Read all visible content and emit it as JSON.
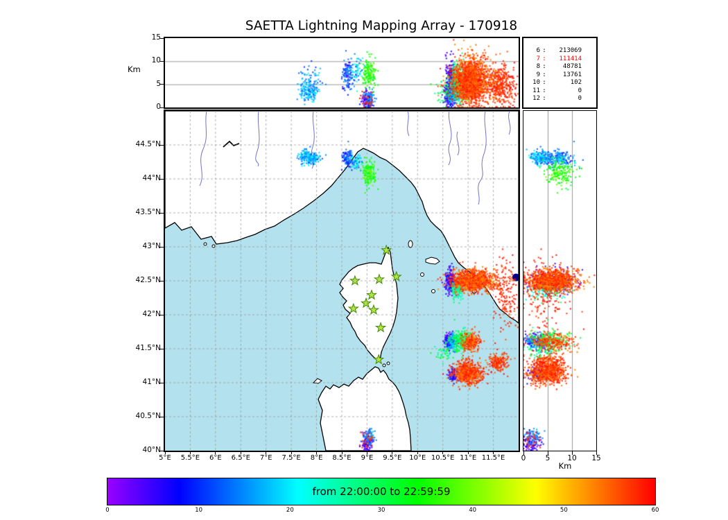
{
  "chart_data": {
    "type": "scatter",
    "title": "SAETTA Lightning Mapping Array - 170918",
    "panels": [
      {
        "id": "top",
        "x_axis": "longitude",
        "y_axis": "altitude_km",
        "xlim_deg": [
          5,
          12
        ],
        "ylim_km": [
          0,
          15
        ],
        "grid_lines_km": [
          5,
          10
        ]
      },
      {
        "id": "map",
        "x_axis": "longitude",
        "y_axis": "latitude",
        "xlim_deg": [
          5,
          12
        ],
        "ylim_deg": [
          40,
          45
        ],
        "grid": "dashed 0.5 deg"
      },
      {
        "id": "right",
        "x_axis": "altitude_km",
        "y_axis": "latitude",
        "xlim_km": [
          0,
          15
        ],
        "ylim_deg": [
          40,
          45
        ],
        "grid_lines_km": [
          5,
          10
        ]
      }
    ],
    "axes": {
      "altitude_km": {
        "label": "Km",
        "ticks": [
          0,
          5,
          10,
          15
        ],
        "range": [
          0,
          15
        ]
      },
      "longitude": {
        "ticks": [
          "5°E",
          "5.5°E",
          "6°E",
          "6.5°E",
          "7°E",
          "7.5°E",
          "8°E",
          "8.5°E",
          "9°E",
          "9.5°E",
          "10°E",
          "10.5°E",
          "11°E",
          "11.5°E"
        ],
        "range_deg": [
          5,
          12
        ]
      },
      "latitude": {
        "ticks": [
          "40°N",
          "40.5°N",
          "41°N",
          "41.5°N",
          "42°N",
          "42.5°N",
          "43°N",
          "43.5°N",
          "44°N",
          "44.5°N"
        ],
        "range_deg": [
          40,
          45
        ]
      }
    },
    "colorbar": {
      "label": "from 22:00:00 to 22:59:59",
      "ticks": [
        0,
        10,
        20,
        30,
        40,
        50,
        60
      ],
      "range": [
        0,
        60
      ]
    },
    "station_counts": [
      {
        "level": "6",
        "count": "213069",
        "highlighted": false
      },
      {
        "level": "7",
        "count": "111414",
        "highlighted": true
      },
      {
        "level": "8",
        "count": "48781",
        "highlighted": false
      },
      {
        "level": "9",
        "count": "13761",
        "highlighted": false
      },
      {
        "level": "10",
        "count": "102",
        "highlighted": false
      },
      {
        "level": "11",
        "count": "0",
        "highlighted": false
      },
      {
        "level": "12",
        "count": "0",
        "highlighted": false
      }
    ],
    "stations_lonlat": [
      [
        9.38,
        42.95
      ],
      [
        8.76,
        42.5
      ],
      [
        9.24,
        42.52
      ],
      [
        9.58,
        42.56
      ],
      [
        9.09,
        42.29
      ],
      [
        8.73,
        42.09
      ],
      [
        9.13,
        42.07
      ],
      [
        8.98,
        42.17
      ],
      [
        9.27,
        41.81
      ],
      [
        9.23,
        41.34
      ]
    ],
    "clusters": [
      {
        "name": "france-blue-low",
        "lon": 7.85,
        "lon_s": 0.1,
        "lat": 44.3,
        "lat_s": 0.05,
        "alt": 3.5,
        "alt_s": 1.2,
        "n": 160,
        "t": [
          12,
          22
        ]
      },
      {
        "name": "france-blue-high",
        "lon": 7.85,
        "lon_s": 0.12,
        "lat": 44.32,
        "lat_s": 0.05,
        "alt": 7.0,
        "alt_s": 1.5,
        "n": 40,
        "t": [
          10,
          20
        ]
      },
      {
        "name": "liguria-violet",
        "lon": 8.62,
        "lon_s": 0.06,
        "lat": 44.3,
        "lat_s": 0.06,
        "alt": 7.0,
        "alt_s": 1.6,
        "n": 110,
        "t": [
          4,
          18
        ]
      },
      {
        "name": "liguria-mix",
        "lon": 8.8,
        "lon_s": 0.06,
        "lat": 44.25,
        "lat_s": 0.06,
        "alt": 8.0,
        "alt_s": 1.4,
        "n": 60,
        "t": [
          10,
          26
        ]
      },
      {
        "name": "liguria-green",
        "lon": 9.05,
        "lon_s": 0.06,
        "lat": 44.08,
        "lat_s": 0.09,
        "alt": 7.5,
        "alt_s": 1.4,
        "n": 170,
        "t": [
          30,
          40
        ]
      },
      {
        "name": "tuscany-violet-edge",
        "lon": 10.65,
        "lon_s": 0.05,
        "lat": 42.5,
        "lat_s": 0.08,
        "alt": 6.0,
        "alt_s": 2.6,
        "n": 220,
        "t": [
          0,
          10
        ]
      },
      {
        "name": "tuscany-cyan",
        "lon": 10.78,
        "lon_s": 0.06,
        "lat": 42.38,
        "lat_s": 0.07,
        "alt": 5.0,
        "alt_s": 2.2,
        "n": 160,
        "t": [
          20,
          30
        ]
      },
      {
        "name": "tuscany-red-main",
        "lon": 11.1,
        "lon_s": 0.22,
        "lat": 42.5,
        "lat_s": 0.08,
        "alt": 6.0,
        "alt_s": 2.6,
        "n": 1100,
        "t": [
          52,
          60
        ]
      },
      {
        "name": "tuscany-red-coast",
        "lon": 11.75,
        "lon_s": 0.12,
        "lat": 42.3,
        "lat_s": 0.25,
        "alt": 4.5,
        "alt_s": 2.3,
        "n": 160,
        "t": [
          56,
          60
        ]
      },
      {
        "name": "sea-mix-violet",
        "lon": 10.62,
        "lon_s": 0.05,
        "lat": 41.62,
        "lat_s": 0.06,
        "alt": 2.5,
        "alt_s": 1.2,
        "n": 110,
        "t": [
          0,
          10
        ]
      },
      {
        "name": "sea-mix-blue",
        "lon": 10.7,
        "lon_s": 0.05,
        "lat": 41.6,
        "lat_s": 0.07,
        "alt": 4.0,
        "alt_s": 1.5,
        "n": 110,
        "t": [
          12,
          20
        ]
      },
      {
        "name": "sea-mix-cyangreen",
        "lon": 10.85,
        "lon_s": 0.08,
        "lat": 41.62,
        "lat_s": 0.08,
        "alt": 5.0,
        "alt_s": 2.0,
        "n": 210,
        "t": [
          22,
          38
        ]
      },
      {
        "name": "sea-mix-red",
        "lon": 11.05,
        "lon_s": 0.09,
        "lat": 41.6,
        "lat_s": 0.07,
        "alt": 6.0,
        "alt_s": 2.4,
        "n": 260,
        "t": [
          52,
          60
        ]
      },
      {
        "name": "sea-sparse-cyan",
        "lon": 10.52,
        "lon_s": 0.1,
        "lat": 41.45,
        "lat_s": 0.08,
        "alt": 4.0,
        "alt_s": 2.0,
        "n": 45,
        "t": [
          24,
          34
        ]
      },
      {
        "name": "south-red",
        "lon": 11.0,
        "lon_s": 0.14,
        "lat": 41.15,
        "lat_s": 0.08,
        "alt": 5.0,
        "alt_s": 2.0,
        "n": 650,
        "t": [
          53,
          60
        ]
      },
      {
        "name": "south-violet",
        "lon": 10.72,
        "lon_s": 0.05,
        "lat": 41.12,
        "lat_s": 0.05,
        "alt": 3.0,
        "alt_s": 1.4,
        "n": 90,
        "t": [
          2,
          10
        ]
      },
      {
        "name": "south-red-east",
        "lon": 11.6,
        "lon_s": 0.1,
        "lat": 41.3,
        "lat_s": 0.07,
        "alt": 5.0,
        "alt_s": 2.0,
        "n": 180,
        "t": [
          54,
          60
        ]
      },
      {
        "name": "sardinia-violet",
        "lon": 9.0,
        "lon_s": 0.05,
        "lat": 40.12,
        "lat_s": 0.08,
        "alt": 1.5,
        "alt_s": 0.9,
        "n": 110,
        "t": [
          0,
          9
        ]
      },
      {
        "name": "sardinia-blue",
        "lon": 9.05,
        "lon_s": 0.05,
        "lat": 40.22,
        "lat_s": 0.06,
        "alt": 2.0,
        "alt_s": 1.0,
        "n": 60,
        "t": [
          12,
          18
        ]
      },
      {
        "name": "sardinia-red",
        "lon": 9.0,
        "lon_s": 0.07,
        "lat": 40.15,
        "lat_s": 0.09,
        "alt": 1.5,
        "alt_s": 1.0,
        "n": 28,
        "t": [
          55,
          60
        ]
      }
    ],
    "extra_dots": [
      {
        "lon": 11.95,
        "lat": 42.55,
        "color": "#00008b",
        "r": 5.5
      }
    ]
  },
  "colors": {
    "sea": "#b3e2ee",
    "land": "#ffffff",
    "coast": "#000000",
    "river": "#7272c8",
    "grid": "#999999",
    "station_fill": "#b5e048",
    "station_stroke": "#3d8b00",
    "highlight": "#ff0000"
  }
}
